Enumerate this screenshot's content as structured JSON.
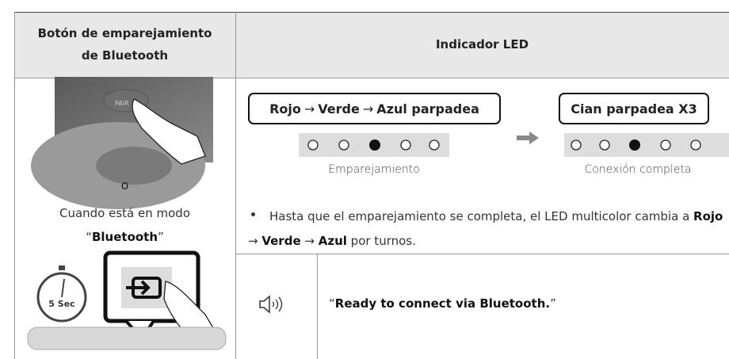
{
  "header": {
    "col1": "Botón de emparejamiento de Bluetooth",
    "col2": "Indicador LED"
  },
  "left": {
    "button_label": "PAIR",
    "or": "o",
    "mode_prefix": "Cuando está en modo",
    "mode_quote_open": "“",
    "mode_name": "Bluetooth",
    "mode_quote_close": "”",
    "timer": "5 Sec"
  },
  "led": {
    "box1": [
      "Rojo",
      "→",
      "Verde",
      "→",
      "Azul parpadea"
    ],
    "caption1": "Emparejamiento",
    "box2": "Cian parpadea X3",
    "caption2": "Conexión completa"
  },
  "bullet": [
    "Hasta que el emparejamiento se completa, el LED multicolor cambia a ",
    "Rojo",
    " → ",
    "Verde",
    " → ",
    "Azul",
    " por turnos."
  ],
  "voice": {
    "quote_open": "“",
    "text": "Ready to connect via Bluetooth.",
    "quote_close": "”"
  }
}
